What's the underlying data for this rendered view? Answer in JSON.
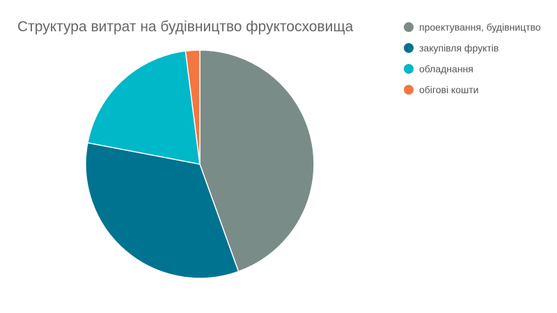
{
  "chart_data": {
    "type": "pie",
    "title": "Структура витрат на будівництво фруктосховища",
    "legend_position": "right",
    "categories": [
      "проектування, будівництво",
      "закупівля фруктів",
      "обладнання",
      "обігові кошти"
    ],
    "values": [
      44.5,
      33.5,
      20,
      2
    ],
    "colors": [
      "#7a8c88",
      "#007390",
      "#00b8c8",
      "#f47640"
    ]
  }
}
